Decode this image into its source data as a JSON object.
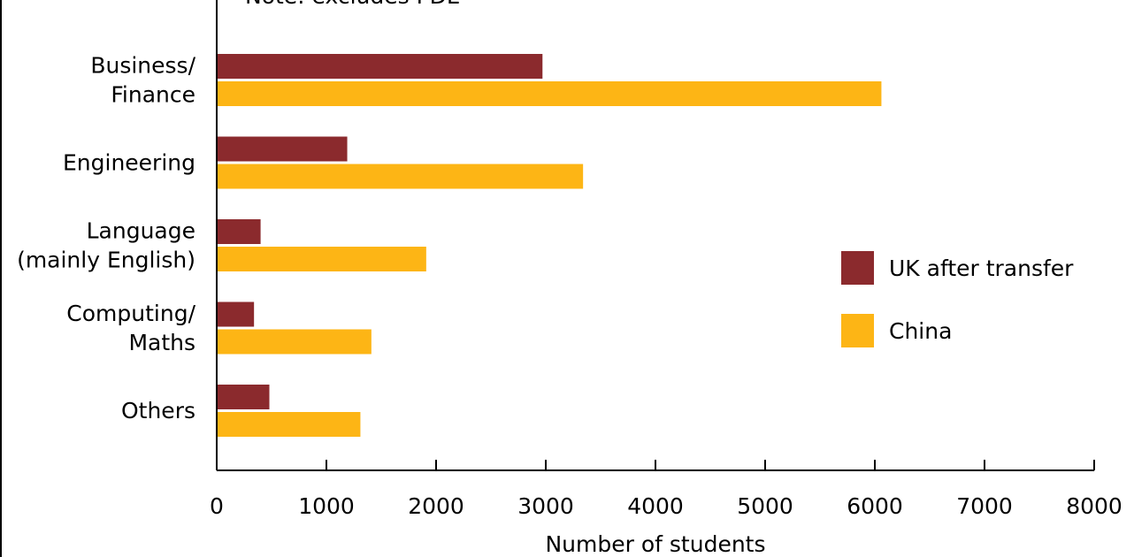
{
  "chart_data": {
    "type": "bar",
    "orientation": "horizontal",
    "note": "Note: excludes PDL",
    "categories": [
      [
        "Business/",
        "Finance"
      ],
      [
        "Engineering"
      ],
      [
        "Language",
        "(mainly English)"
      ],
      [
        "Computing/",
        "Maths"
      ],
      [
        "Others"
      ]
    ],
    "series": [
      {
        "name": "UK after transfer",
        "color": "#8b2a2d",
        "values": [
          2970,
          1190,
          400,
          340,
          480
        ]
      },
      {
        "name": "China",
        "color": "#fdb515",
        "values": [
          6060,
          3340,
          1910,
          1410,
          1310
        ]
      }
    ],
    "xlabel": "Number of students",
    "xlim": [
      0,
      8000
    ],
    "xticks": [
      0,
      1000,
      2000,
      3000,
      4000,
      5000,
      6000,
      7000,
      8000
    ],
    "grid": false,
    "legend_position": "right"
  }
}
